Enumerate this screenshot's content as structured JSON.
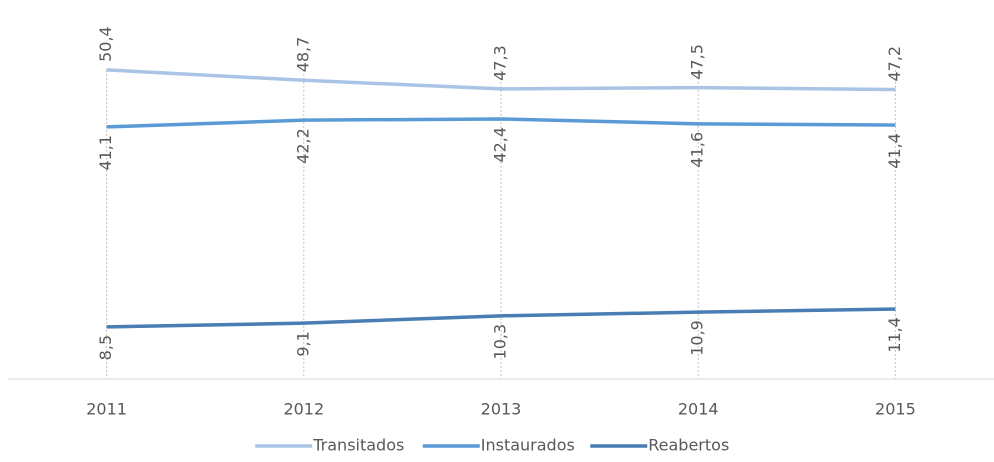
{
  "chart_data": {
    "type": "line",
    "categories": [
      "2011",
      "2012",
      "2013",
      "2014",
      "2015"
    ],
    "series": [
      {
        "name": "Transitados",
        "color": "#a9c4e4",
        "values": [
          50.4,
          48.7,
          47.3,
          47.5,
          47.2
        ],
        "value_labels": [
          "50,4",
          "48,7",
          "47,3",
          "47,5",
          "47,2"
        ]
      },
      {
        "name": "Instaurados",
        "color": "#5b9bd5",
        "values": [
          41.1,
          42.2,
          42.4,
          41.6,
          41.4
        ],
        "value_labels": [
          "41,1",
          "42,2",
          "42,4",
          "41,6",
          "41,4"
        ]
      },
      {
        "name": "Reabertos",
        "color": "#4a7db3",
        "values": [
          8.5,
          9.1,
          10.3,
          10.9,
          11.4
        ],
        "value_labels": [
          "8,5",
          "9,1",
          "10,3",
          "10,9",
          "11,4"
        ]
      }
    ],
    "ylim": [
      0,
      60
    ],
    "grid": true
  }
}
